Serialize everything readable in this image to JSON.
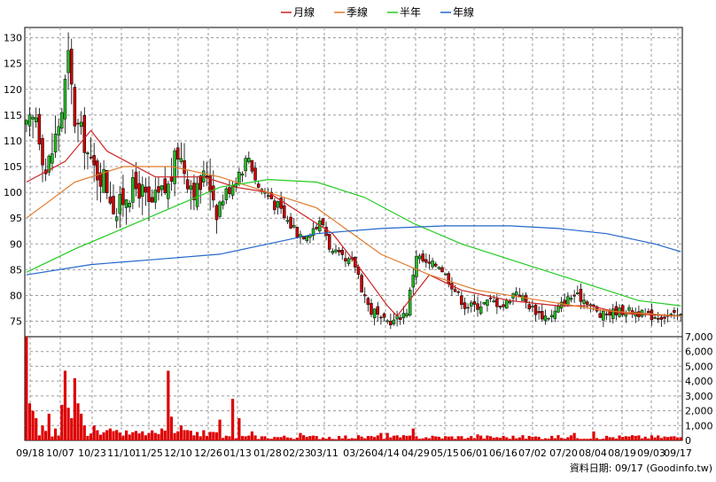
{
  "legend": [
    {
      "key": "ma20",
      "label": "月線",
      "color": "#cc2222"
    },
    {
      "key": "ma60",
      "label": "季線",
      "color": "#e07a2a"
    },
    {
      "key": "ma120",
      "label": "半年",
      "color": "#22cc22"
    },
    {
      "key": "ma240",
      "label": "年線",
      "color": "#2266cc"
    }
  ],
  "source_text": "資料日期: 09/17 (Goodinfo.tw)",
  "colors": {
    "up": "#22bb22",
    "down": "#cc0000",
    "volume": "#dd0000",
    "wick": "#000000"
  },
  "chart_data": [
    {
      "type": "candlestick",
      "title": "",
      "xlabel": "",
      "ylabel": "",
      "ylim": [
        72,
        132
      ],
      "y_ticks": [
        75,
        80,
        85,
        90,
        95,
        100,
        105,
        110,
        115,
        120,
        125,
        130
      ],
      "x_tick_labels": [
        "09/18",
        "10/07",
        "10/23",
        "11/10",
        "11/25",
        "12/10",
        "12/26",
        "01/13",
        "01/28",
        "02/23",
        "03/11",
        "03/26",
        "04/14",
        "04/29",
        "05/15",
        "06/01",
        "06/16",
        "07/02",
        "07/20",
        "08/04",
        "08/19",
        "09/03",
        "09/17"
      ],
      "grid": true,
      "legend_position": "top-center",
      "close_anchors": [
        [
          0,
          112
        ],
        [
          3,
          115
        ],
        [
          6,
          104
        ],
        [
          8,
          108
        ],
        [
          11,
          116
        ],
        [
          13,
          126
        ],
        [
          15,
          114
        ],
        [
          18,
          110
        ],
        [
          20,
          105
        ],
        [
          24,
          103
        ],
        [
          28,
          96
        ],
        [
          31,
          100
        ],
        [
          35,
          101
        ],
        [
          38,
          97
        ],
        [
          41,
          99
        ],
        [
          44,
          101
        ],
        [
          47,
          108
        ],
        [
          50,
          103
        ],
        [
          53,
          100
        ],
        [
          56,
          104
        ],
        [
          59,
          97
        ],
        [
          62,
          100
        ],
        [
          66,
          104
        ],
        [
          69,
          107
        ],
        [
          72,
          101
        ],
        [
          76,
          99
        ],
        [
          80,
          95
        ],
        [
          85,
          92
        ],
        [
          88,
          93
        ],
        [
          92,
          94
        ],
        [
          95,
          88
        ],
        [
          99,
          86
        ],
        [
          102,
          86
        ],
        [
          106,
          78
        ],
        [
          110,
          75
        ],
        [
          114,
          75
        ],
        [
          118,
          77
        ],
        [
          121,
          88
        ],
        [
          124,
          86
        ],
        [
          128,
          86
        ],
        [
          132,
          82
        ],
        [
          136,
          78
        ],
        [
          140,
          78
        ],
        [
          144,
          79
        ],
        [
          148,
          78
        ],
        [
          152,
          81
        ],
        [
          156,
          78
        ],
        [
          160,
          76
        ],
        [
          163,
          76
        ],
        [
          167,
          79
        ],
        [
          170,
          80
        ],
        [
          174,
          79
        ],
        [
          178,
          76
        ],
        [
          183,
          77
        ],
        [
          188,
          77
        ],
        [
          193,
          76
        ],
        [
          198,
          76
        ],
        [
          203,
          76
        ]
      ],
      "ma_lines": {
        "ma20": [
          [
            0,
            102
          ],
          [
            12,
            106
          ],
          [
            20,
            112
          ],
          [
            25,
            108
          ],
          [
            40,
            103
          ],
          [
            55,
            103
          ],
          [
            65,
            101
          ],
          [
            75,
            100
          ],
          [
            85,
            96
          ],
          [
            95,
            92
          ],
          [
            105,
            84
          ],
          [
            112,
            78
          ],
          [
            115,
            76
          ],
          [
            125,
            84
          ],
          [
            135,
            81
          ],
          [
            150,
            79
          ],
          [
            165,
            78
          ],
          [
            175,
            78
          ],
          [
            185,
            76.5
          ],
          [
            203,
            76
          ]
        ],
        "ma60": [
          [
            0,
            95
          ],
          [
            15,
            102
          ],
          [
            30,
            105
          ],
          [
            45,
            105
          ],
          [
            60,
            103
          ],
          [
            75,
            100
          ],
          [
            90,
            97
          ],
          [
            110,
            88
          ],
          [
            125,
            84
          ],
          [
            140,
            81
          ],
          [
            160,
            79
          ],
          [
            180,
            77
          ],
          [
            203,
            76
          ]
        ],
        "ma120": [
          [
            0,
            84.5
          ],
          [
            15,
            89
          ],
          [
            30,
            93
          ],
          [
            45,
            97
          ],
          [
            60,
            101
          ],
          [
            75,
            102.5
          ],
          [
            90,
            102
          ],
          [
            105,
            99
          ],
          [
            120,
            94
          ],
          [
            135,
            90
          ],
          [
            150,
            87
          ],
          [
            165,
            84
          ],
          [
            180,
            81
          ],
          [
            190,
            79
          ],
          [
            203,
            78
          ]
        ],
        "ma240": [
          [
            0,
            84
          ],
          [
            20,
            86
          ],
          [
            40,
            87
          ],
          [
            60,
            88
          ],
          [
            75,
            90
          ],
          [
            90,
            92
          ],
          [
            110,
            93
          ],
          [
            130,
            93.5
          ],
          [
            150,
            93.5
          ],
          [
            165,
            93
          ],
          [
            180,
            92
          ],
          [
            195,
            90
          ],
          [
            203,
            88.5
          ]
        ]
      }
    },
    {
      "type": "bar",
      "title": "",
      "xlabel": "",
      "ylabel": "",
      "ylim": [
        0,
        7000
      ],
      "y_tick_labels": [
        "0",
        "1,000",
        "2,000",
        "3,000",
        "4,000",
        "5,000",
        "6,000",
        "7,000"
      ],
      "y_ticks": [
        0,
        1000,
        2000,
        3000,
        4000,
        5000,
        6000,
        7000
      ],
      "spikes": [
        [
          0,
          7000
        ],
        [
          1,
          2500
        ],
        [
          2,
          2000
        ],
        [
          3,
          1500
        ],
        [
          5,
          1000
        ],
        [
          7,
          1800
        ],
        [
          9,
          800
        ],
        [
          11,
          2400
        ],
        [
          12,
          4700
        ],
        [
          13,
          2200
        ],
        [
          14,
          1500
        ],
        [
          15,
          4200
        ],
        [
          16,
          2500
        ],
        [
          17,
          1800
        ],
        [
          18,
          1000
        ],
        [
          21,
          1000
        ],
        [
          26,
          800
        ],
        [
          40,
          500
        ],
        [
          42,
          800
        ],
        [
          44,
          4700
        ],
        [
          45,
          1600
        ],
        [
          48,
          1000
        ],
        [
          60,
          1400
        ],
        [
          64,
          2800
        ],
        [
          66,
          1500
        ],
        [
          70,
          600
        ],
        [
          85,
          500
        ],
        [
          110,
          500
        ],
        [
          112,
          500
        ],
        [
          120,
          800
        ],
        [
          140,
          400
        ],
        [
          170,
          500
        ],
        [
          176,
          600
        ],
        [
          188,
          350
        ]
      ]
    }
  ]
}
